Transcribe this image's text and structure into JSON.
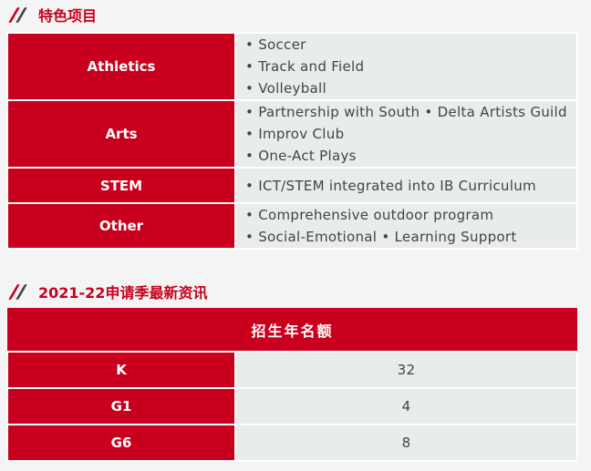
{
  "section1": {
    "title": "特色项目",
    "rows": [
      {
        "label": "Athletics",
        "items": [
          "• Soccer",
          "• Track and Field",
          "• Volleyball"
        ]
      },
      {
        "label": "Arts",
        "items": [
          "• Partnership with South • Delta Artists Guild",
          "• Improv Club",
          "• One-Act Plays"
        ]
      },
      {
        "label": "STEM",
        "items": [
          "• ICT/STEM integrated into IB Curriculum"
        ]
      },
      {
        "label": "Other",
        "items": [
          "• Comprehensive outdoor program",
          "• Social-Emotional • Learning Support"
        ]
      }
    ]
  },
  "section2": {
    "title": "2021-22申请季最新资讯",
    "header": "招生年名额",
    "rows": [
      {
        "grade": "K",
        "count": "32"
      },
      {
        "grade": "G1",
        "count": "4"
      },
      {
        "grade": "G6",
        "count": "8"
      }
    ]
  },
  "colors": {
    "accent": "#c8001e",
    "cell": "#e8eceb"
  }
}
